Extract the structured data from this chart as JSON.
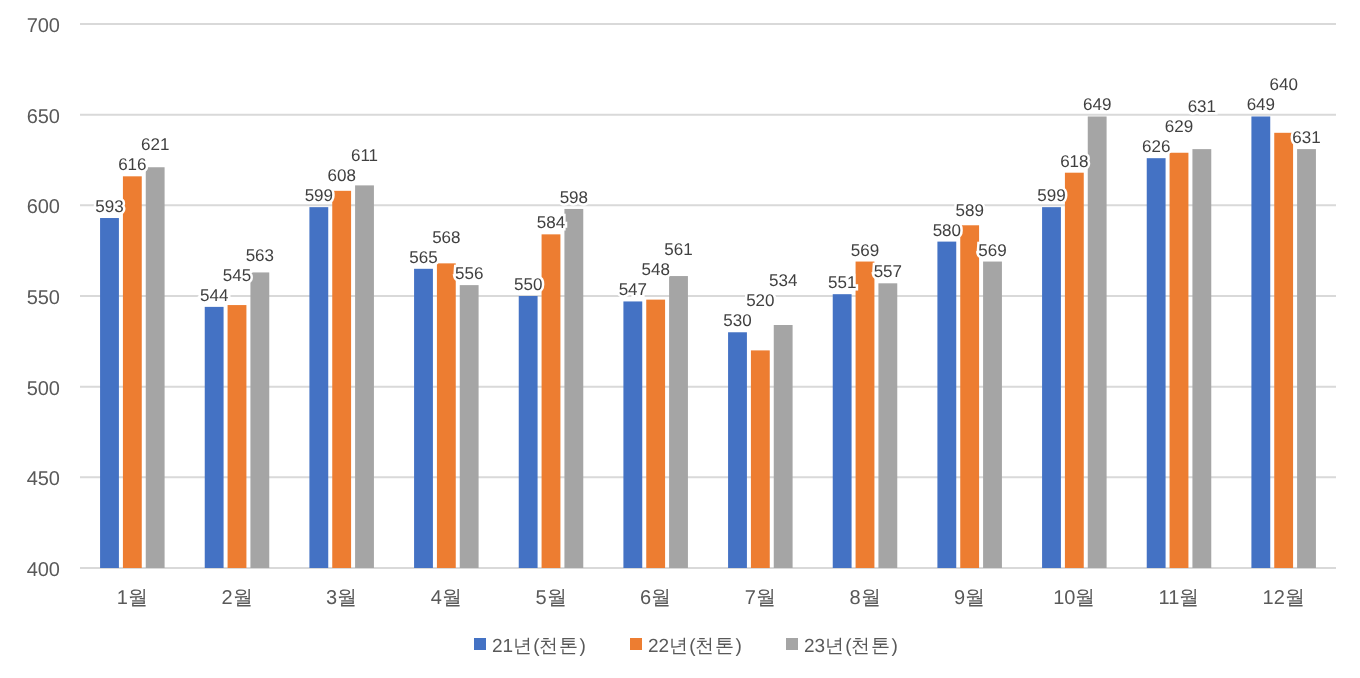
{
  "chart_data": {
    "type": "bar",
    "categories": [
      "1월",
      "2월",
      "3월",
      "4월",
      "5월",
      "6월",
      "7월",
      "8월",
      "9월",
      "10월",
      "11월",
      "12월"
    ],
    "series": [
      {
        "name": "21년(천톤)",
        "color": "#4472c4",
        "values": [
          593,
          544,
          599,
          565,
          550,
          547,
          530,
          551,
          580,
          599,
          626,
          649
        ]
      },
      {
        "name": "22년(천톤)",
        "color": "#ed7d31",
        "values": [
          616,
          545,
          608,
          568,
          584,
          548,
          520,
          569,
          589,
          618,
          629,
          640
        ]
      },
      {
        "name": "23년(천톤)",
        "color": "#a5a5a5",
        "values": [
          621,
          563,
          611,
          556,
          598,
          561,
          534,
          557,
          569,
          649,
          631,
          631
        ]
      }
    ],
    "ylim": [
      400,
      700
    ],
    "yticks": [
      400,
      450,
      500,
      550,
      600,
      650,
      700
    ],
    "grid": "y",
    "legend": "bottom",
    "data_labels": true
  }
}
